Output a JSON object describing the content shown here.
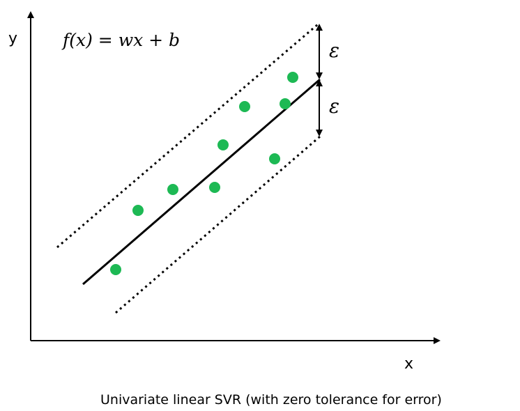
{
  "axes": {
    "x_label": "x",
    "y_label": "y"
  },
  "formula": "f(x) = wx + b",
  "epsilon_upper": "ε",
  "epsilon_lower": "ε",
  "caption": "Univariate linear SVR (with zero tolerance for error)",
  "colors": {
    "point": "#1db954",
    "line": "#000000"
  }
}
